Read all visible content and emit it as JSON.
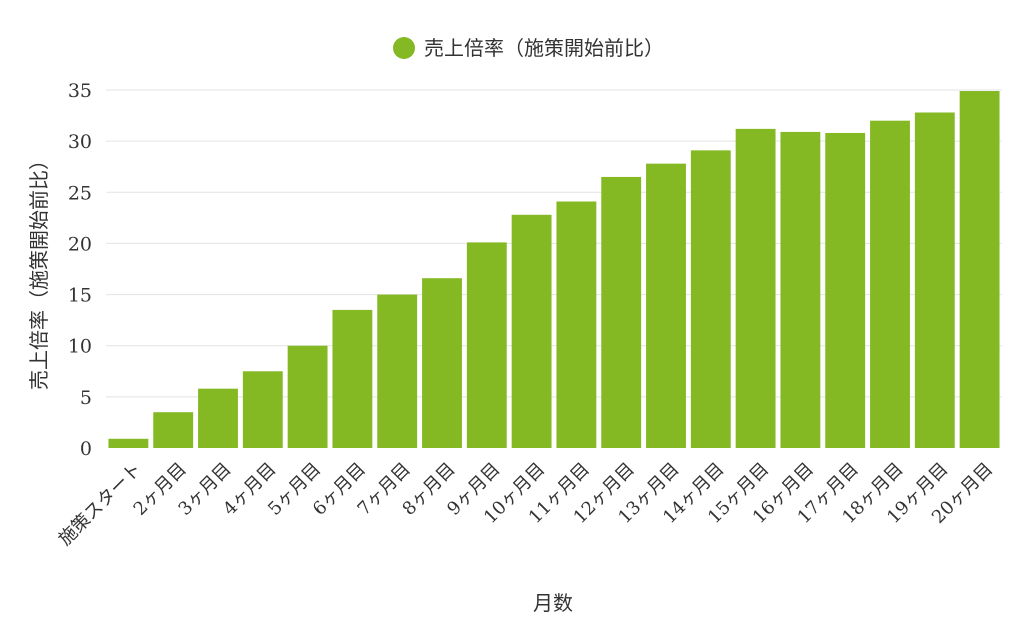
{
  "chart_data": {
    "type": "bar",
    "categories": [
      "施策スタート",
      "2ヶ月目",
      "3ヶ月目",
      "4ヶ月目",
      "5ヶ月目",
      "6ヶ月目",
      "7ヶ月目",
      "8ヶ月目",
      "9ヶ月目",
      "10ヶ月目",
      "11ヶ月目",
      "12ヶ月目",
      "13ヶ月目",
      "14ヶ月目",
      "15ヶ月目",
      "16ヶ月目",
      "17ヶ月目",
      "18ヶ月目",
      "19ヶ月目",
      "20ヶ月目"
    ],
    "series": [
      {
        "name": "売上倍率（施策開始前比）",
        "color": "#84b924",
        "values": [
          0.9,
          3.5,
          5.8,
          7.5,
          10.0,
          13.5,
          15.0,
          16.6,
          20.1,
          22.8,
          24.1,
          26.5,
          27.8,
          29.1,
          31.2,
          30.9,
          30.8,
          32.0,
          32.8,
          34.9
        ]
      }
    ],
    "xlabel": "月数",
    "ylabel": "売上倍率（施策開始前比）",
    "ylim": [
      0,
      35
    ],
    "yticks": [
      0,
      5,
      10,
      15,
      20,
      25,
      30,
      35
    ],
    "grid": true,
    "legend": "top-center"
  }
}
